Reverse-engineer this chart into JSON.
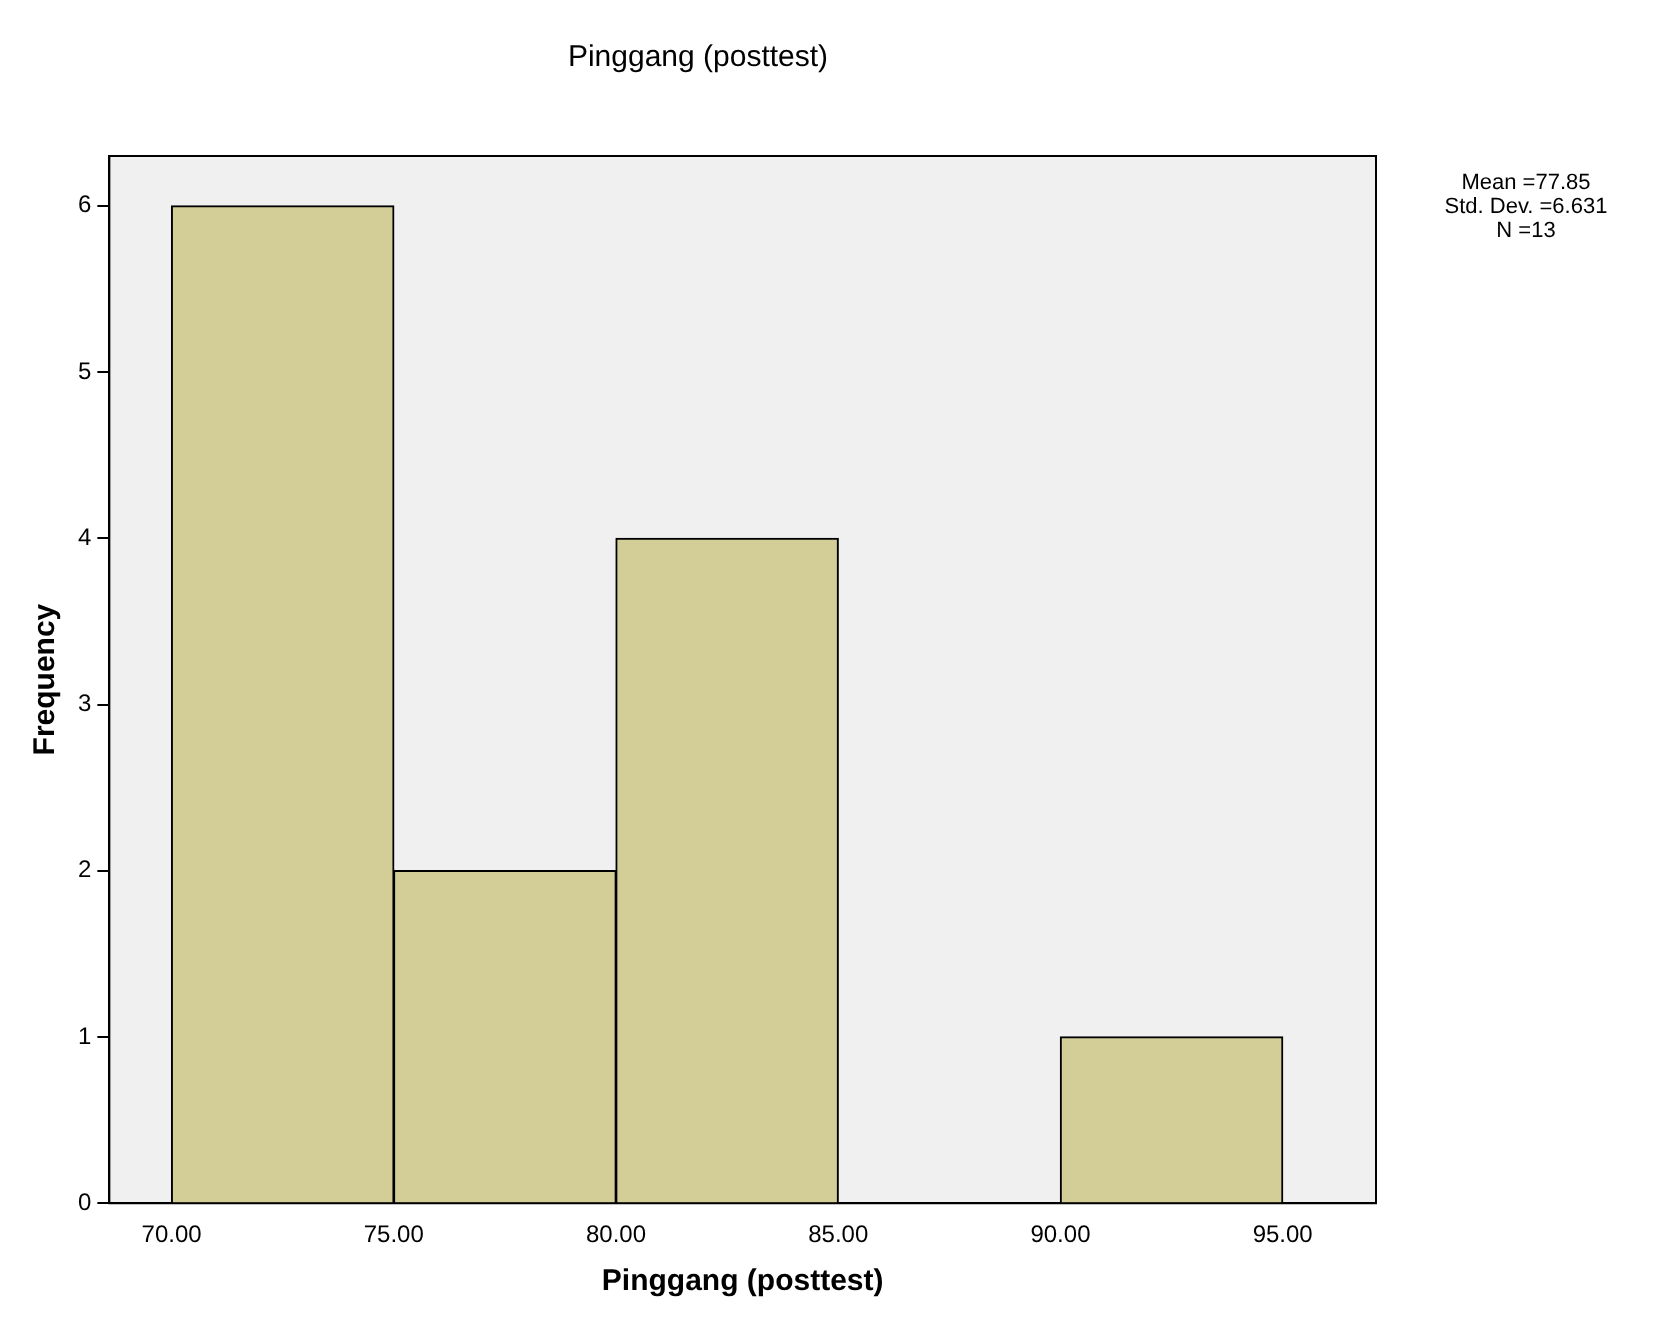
{
  "chart_data": {
    "type": "histogram",
    "title": "Pinggang (posttest)",
    "xlabel": "Pinggang (posttest)",
    "ylabel": "Frequency",
    "bins": [
      70,
      75,
      80,
      85,
      90,
      95
    ],
    "values": [
      6,
      2,
      4,
      0,
      1
    ],
    "color": "#d3ce97",
    "xlim": [
      68.6,
      97.1
    ],
    "xticks": [
      {
        "value": 70,
        "label": "70.00"
      },
      {
        "value": 75,
        "label": "75.00"
      },
      {
        "value": 80,
        "label": "80.00"
      },
      {
        "value": 85,
        "label": "85.00"
      },
      {
        "value": 90,
        "label": "90.00"
      },
      {
        "value": 95,
        "label": "95.00"
      }
    ],
    "ylim": [
      0,
      6.3
    ],
    "yticks": [
      0,
      1,
      2,
      3,
      4,
      5,
      6
    ],
    "annotations": [
      "Mean =77.85",
      "Std. Dev. =6.631",
      "N =13"
    ],
    "grid": false,
    "legend": false
  }
}
